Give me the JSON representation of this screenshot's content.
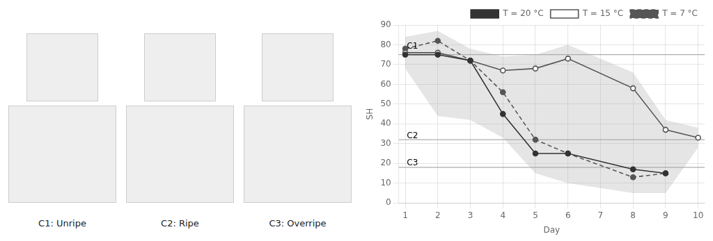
{
  "chart_data": {
    "type": "line",
    "xlabel": "Day",
    "ylabel": "SH",
    "series": [
      {
        "name": "T = 20 °C",
        "x": [
          1,
          2,
          3,
          4,
          5,
          6,
          8,
          9
        ],
        "values": [
          75,
          75,
          72,
          45,
          25,
          25,
          17,
          15
        ],
        "color": "#333333",
        "marker": "circle",
        "line_style": "solid"
      },
      {
        "name": "T = 15 °C",
        "x": [
          1,
          2,
          3,
          4,
          5,
          6,
          8,
          9,
          10
        ],
        "values": [
          76,
          76,
          72,
          67,
          68,
          73,
          58,
          37,
          33
        ],
        "color": "#555555",
        "marker": "open_circle",
        "line_style": "solid"
      },
      {
        "name": "T = 7 °C",
        "x": [
          1,
          2,
          3,
          4,
          5,
          6,
          8,
          9
        ],
        "values": [
          78,
          82,
          72,
          56,
          32,
          25,
          13,
          15
        ],
        "color": "#555555",
        "marker": "circle",
        "line_style": "dashed"
      }
    ],
    "band": {
      "x": [
        1,
        2,
        3,
        4,
        5,
        6,
        7,
        8,
        9,
        10
      ],
      "lower": [
        68,
        44,
        42,
        33,
        15,
        10,
        7.5,
        5,
        5,
        28
      ],
      "upper": [
        84,
        87,
        78,
        74,
        75,
        80,
        73,
        66,
        42,
        38
      ],
      "color": "#aaaaaa"
    },
    "reference_lines": [
      75,
      32,
      18
    ],
    "annotations": [
      {
        "text": "C1",
        "x": 1.05,
        "y": 79
      },
      {
        "text": "C2",
        "x": 1.05,
        "y": 34
      },
      {
        "text": "C3",
        "x": 1.05,
        "y": 20
      }
    ],
    "panel_labels": [
      "C1: Unripe",
      "C2: Ripe",
      "C3: Overripe"
    ],
    "xlim": [
      0.8,
      10.2
    ],
    "xticks": [
      1,
      2,
      3,
      4,
      5,
      6,
      7,
      8,
      9,
      10
    ],
    "ylim": [
      0,
      90
    ],
    "yticks": [
      0,
      10,
      20,
      30,
      40,
      50,
      60,
      70,
      80,
      90
    ],
    "grid": true,
    "legend": "upper right"
  }
}
